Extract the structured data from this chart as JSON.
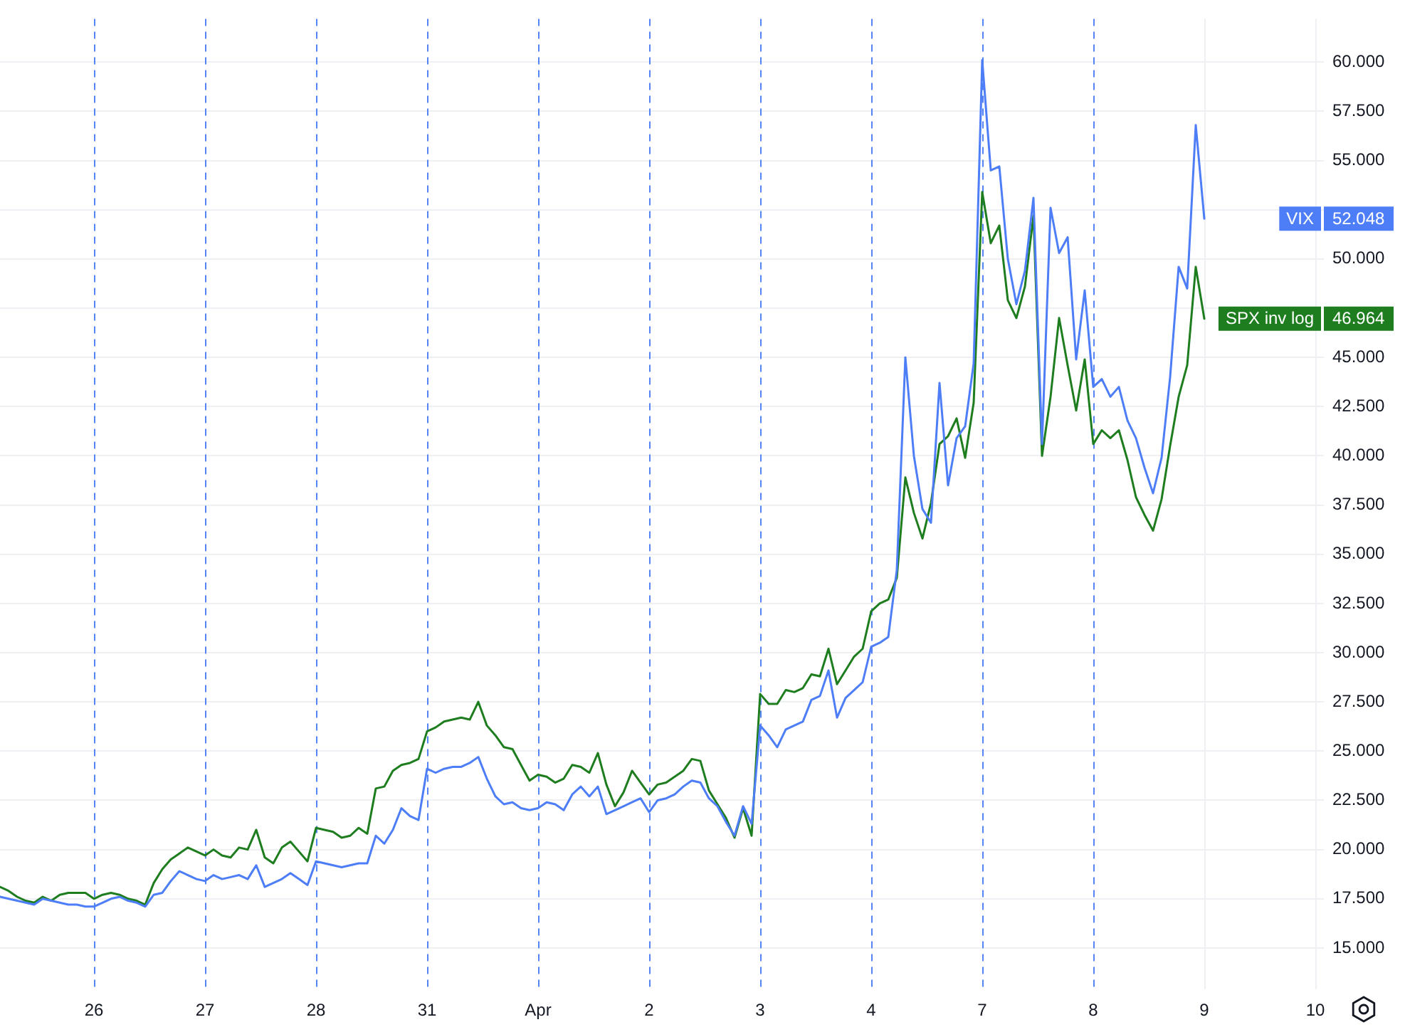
{
  "chart_data": {
    "type": "line",
    "grid": true,
    "marker": "none",
    "legend": "right",
    "categories": [
      null,
      null,
      null,
      null,
      null,
      null,
      null,
      null,
      null,
      null,
      null,
      "26",
      null,
      null,
      null,
      null,
      null,
      null,
      null,
      null,
      null,
      null,
      null,
      null,
      "27",
      null,
      null,
      null,
      null,
      null,
      null,
      null,
      null,
      null,
      null,
      null,
      null,
      "28",
      null,
      null,
      null,
      null,
      null,
      null,
      null,
      null,
      null,
      null,
      null,
      null,
      "31",
      null,
      null,
      null,
      null,
      null,
      null,
      null,
      null,
      null,
      null,
      null,
      null,
      "Apr",
      null,
      null,
      null,
      null,
      null,
      null,
      null,
      null,
      null,
      null,
      null,
      null,
      "2",
      null,
      null,
      null,
      null,
      null,
      null,
      null,
      null,
      null,
      null,
      null,
      null,
      "3",
      null,
      null,
      null,
      null,
      null,
      null,
      null,
      null,
      null,
      null,
      null,
      null,
      "4",
      null,
      null,
      null,
      null,
      null,
      null,
      null,
      null,
      null,
      null,
      null,
      null,
      "7",
      null,
      null,
      null,
      null,
      null,
      null,
      null,
      null,
      null,
      null,
      null,
      null,
      "8",
      null,
      null,
      null,
      null,
      null,
      null,
      null,
      null,
      null,
      null,
      null,
      null,
      "9",
      null,
      null,
      null,
      null,
      null,
      null,
      null,
      null,
      null,
      null,
      null,
      null,
      "10",
      null
    ],
    "ylim": [
      12.9,
      62.2
    ],
    "yticks": [
      {
        "value": 15,
        "label": "15.000"
      },
      {
        "value": 17.5,
        "label": "17.500"
      },
      {
        "value": 20,
        "label": "20.000"
      },
      {
        "value": 22.5,
        "label": "22.500"
      },
      {
        "value": 25,
        "label": "25.000"
      },
      {
        "value": 27.5,
        "label": "27.500"
      },
      {
        "value": 30,
        "label": "30.000"
      },
      {
        "value": 32.5,
        "label": "32.500"
      },
      {
        "value": 35,
        "label": "35.000"
      },
      {
        "value": 37.5,
        "label": "37.500"
      },
      {
        "value": 40,
        "label": "40.000"
      },
      {
        "value": 42.5,
        "label": "42.500"
      },
      {
        "value": 45,
        "label": "45.000"
      },
      {
        "value": 47.5,
        "label": null
      },
      {
        "value": 50,
        "label": "50.000"
      },
      {
        "value": 52.5,
        "label": null
      },
      {
        "value": 55,
        "label": "55.000"
      },
      {
        "value": 57.5,
        "label": "57.500"
      },
      {
        "value": 60,
        "label": "60.000"
      }
    ],
    "annotations": [
      "52.048",
      "46.964"
    ],
    "series": [
      {
        "name": "VIX",
        "color": "#4e7ef7",
        "values": [
          17.6,
          17.5,
          17.4,
          17.3,
          17.2,
          17.5,
          17.4,
          17.3,
          17.2,
          17.2,
          17.1,
          17.1,
          17.3,
          17.5,
          17.6,
          17.4,
          17.3,
          17.1,
          17.7,
          17.8,
          18.4,
          18.9,
          18.7,
          18.5,
          18.4,
          18.7,
          18.5,
          18.6,
          18.7,
          18.5,
          19.2,
          18.1,
          18.3,
          18.5,
          18.8,
          18.5,
          18.2,
          19.4,
          19.3,
          19.2,
          19.1,
          19.2,
          19.3,
          19.3,
          20.7,
          20.3,
          21.0,
          22.1,
          21.7,
          21.5,
          24.1,
          23.9,
          24.1,
          24.2,
          24.2,
          24.4,
          24.7,
          23.6,
          22.7,
          22.3,
          22.4,
          22.1,
          22.0,
          22.1,
          22.4,
          22.3,
          22.0,
          22.8,
          23.2,
          22.7,
          23.2,
          21.8,
          22.0,
          22.2,
          22.4,
          22.6,
          21.9,
          22.5,
          22.6,
          22.8,
          23.2,
          23.5,
          23.4,
          22.6,
          22.2,
          21.4,
          20.7,
          22.2,
          21.3,
          26.3,
          25.8,
          25.2,
          26.1,
          26.3,
          26.5,
          27.6,
          27.8,
          29.1,
          26.7,
          27.7,
          28.1,
          28.5,
          30.3,
          30.5,
          30.8,
          34.2,
          45.0,
          40.0,
          37.3,
          36.6,
          43.7,
          38.5,
          40.9,
          41.5,
          44.7,
          60.1,
          54.5,
          54.7,
          50.0,
          47.7,
          49.4,
          53.1,
          40.6,
          52.6,
          50.3,
          51.1,
          44.9,
          48.4,
          43.5,
          43.9,
          43.0,
          43.5,
          41.8,
          40.9,
          39.4,
          38.1,
          39.9,
          44.0,
          49.6,
          48.5,
          56.8,
          52.048,
          null,
          null,
          null,
          null,
          null,
          null,
          null,
          null,
          null,
          null,
          null,
          null,
          null,
          null
        ]
      },
      {
        "name": "SPX inv log",
        "color": "#1e7d1e",
        "values": [
          18.1,
          17.9,
          17.6,
          17.4,
          17.3,
          17.6,
          17.4,
          17.7,
          17.8,
          17.8,
          17.8,
          17.5,
          17.7,
          17.8,
          17.7,
          17.5,
          17.4,
          17.2,
          18.3,
          19.0,
          19.5,
          19.8,
          20.1,
          19.9,
          19.7,
          20.0,
          19.7,
          19.6,
          20.1,
          20.0,
          21.0,
          19.6,
          19.3,
          20.1,
          20.4,
          19.9,
          19.4,
          21.1,
          21.0,
          20.9,
          20.6,
          20.7,
          21.1,
          20.8,
          23.1,
          23.2,
          24.0,
          24.3,
          24.4,
          24.6,
          26.0,
          26.2,
          26.5,
          26.6,
          26.7,
          26.6,
          27.5,
          26.3,
          25.8,
          25.2,
          25.1,
          24.3,
          23.5,
          23.8,
          23.7,
          23.4,
          23.6,
          24.3,
          24.2,
          23.9,
          24.9,
          23.3,
          22.2,
          22.9,
          24.0,
          23.4,
          22.8,
          23.3,
          23.4,
          23.7,
          24.0,
          24.6,
          24.5,
          23.0,
          22.3,
          21.6,
          20.6,
          22.1,
          20.7,
          27.9,
          27.4,
          27.4,
          28.1,
          28.0,
          28.2,
          28.9,
          28.8,
          30.2,
          28.4,
          29.1,
          29.8,
          30.2,
          32.1,
          32.5,
          32.7,
          33.8,
          38.9,
          37.1,
          35.8,
          37.6,
          40.6,
          41.0,
          41.9,
          39.9,
          42.7,
          53.4,
          50.8,
          51.7,
          47.9,
          47.0,
          48.6,
          52.2,
          40.0,
          43.0,
          47.0,
          44.6,
          42.3,
          44.9,
          40.6,
          41.3,
          40.9,
          41.3,
          39.8,
          37.9,
          37.0,
          36.2,
          37.8,
          40.5,
          43.0,
          44.6,
          49.6,
          46.964,
          null,
          null,
          null,
          null,
          null,
          null,
          null,
          null,
          null,
          null,
          null,
          null,
          null,
          null
        ]
      }
    ]
  }
}
